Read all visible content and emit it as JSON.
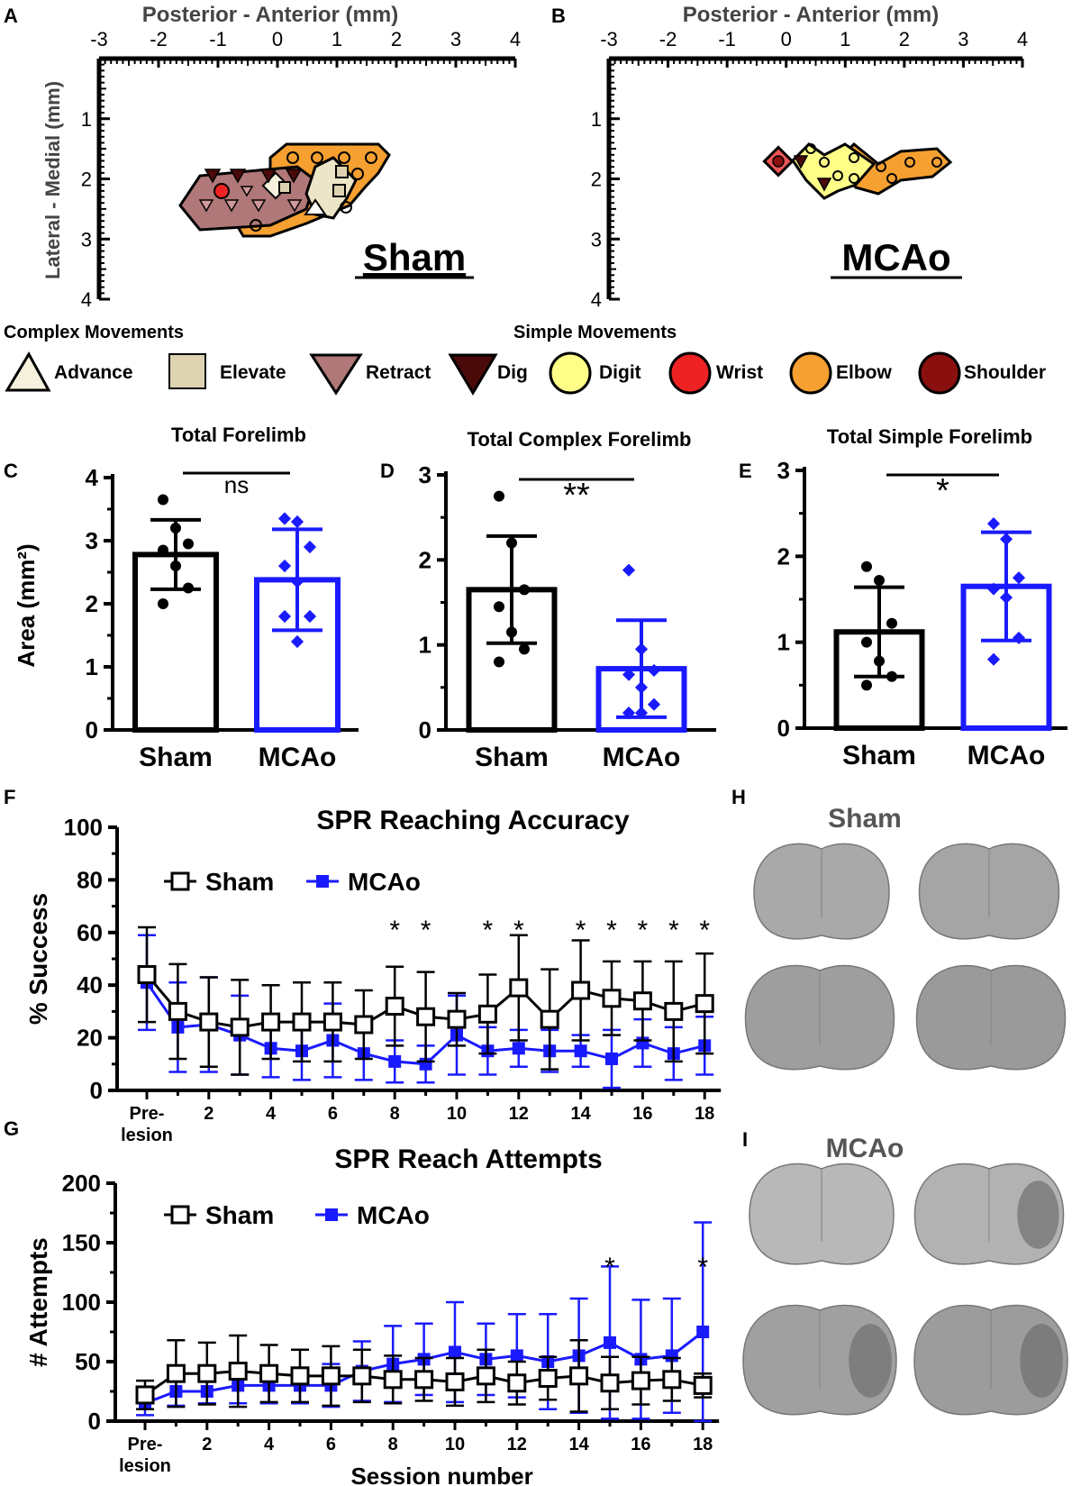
{
  "colors": {
    "sham": "#000000",
    "mcao": "#1a1aff",
    "advance": "#f5f1dc",
    "elevate": "#ddd3b0",
    "retract": "#b07878",
    "dig": "#4a0a0a",
    "digit": "#ffff88",
    "wrist": "#ee2222",
    "elbow": "#f5a030",
    "shoulder": "#8a0f0f"
  },
  "panel_letters": {
    "a": "A",
    "b": "B",
    "c": "C",
    "d": "D",
    "e": "E",
    "f": "F",
    "g": "G",
    "h": "H",
    "i": "I"
  },
  "maps": {
    "xlabel": "Posterior - Anterior (mm)",
    "ylabel": "Lateral - Medial (mm)",
    "xticks": [
      "-3",
      "-2",
      "-1",
      "0",
      "1",
      "2",
      "3",
      "4"
    ],
    "yticks": [
      "1",
      "2",
      "3",
      "4"
    ],
    "sham_label": "Sham",
    "mcao_label": "MCAo"
  },
  "legend": {
    "complex_title": "Complex Movements",
    "simple_title": "Simple Movements",
    "items": [
      "Advance",
      "Elevate",
      "Retract",
      "Dig",
      "Digit",
      "Wrist",
      "Elbow",
      "Shoulder"
    ]
  },
  "chart_data": [
    {
      "type": "bar",
      "title": "Total Forelimb",
      "ylabel": "Area (mm²)",
      "categories": [
        "Sham",
        "MCAo"
      ],
      "values": [
        2.78,
        2.38
      ],
      "error": [
        0.55,
        0.8
      ],
      "ylim": [
        0,
        4
      ],
      "yticks": [
        "0",
        "1",
        "2",
        "3",
        "4"
      ],
      "significance": "ns",
      "points": {
        "Sham": [
          3.65,
          3.2,
          2.95,
          2.85,
          2.6,
          2.25,
          2.0
        ],
        "MCAo": [
          3.35,
          3.3,
          2.9,
          2.6,
          2.35,
          1.8,
          1.8,
          1.4
        ]
      }
    },
    {
      "type": "bar",
      "title": "Total Complex Forelimb",
      "categories": [
        "Sham",
        "MCAo"
      ],
      "values": [
        1.65,
        0.72
      ],
      "error": [
        0.63,
        0.57
      ],
      "ylim": [
        0,
        3
      ],
      "yticks": [
        "0",
        "1",
        "2",
        "3"
      ],
      "significance": "**",
      "points": {
        "Sham": [
          2.75,
          2.2,
          1.65,
          1.45,
          1.15,
          0.95,
          0.8
        ],
        "MCAo": [
          1.88,
          0.95,
          0.7,
          0.65,
          0.5,
          0.3,
          0.2,
          0.2
        ]
      }
    },
    {
      "type": "bar",
      "title": "Total Simple Forelimb",
      "categories": [
        "Sham",
        "MCAo"
      ],
      "values": [
        1.12,
        1.65
      ],
      "error": [
        0.52,
        0.63
      ],
      "ylim": [
        0,
        3
      ],
      "yticks": [
        "0",
        "1",
        "2",
        "3"
      ],
      "significance": "*",
      "points": {
        "Sham": [
          1.88,
          1.72,
          1.22,
          1.0,
          0.78,
          0.6,
          0.5
        ],
        "MCAo": [
          2.38,
          2.2,
          1.75,
          1.62,
          1.52,
          1.05,
          0.8
        ]
      }
    },
    {
      "type": "line",
      "title": "SPR Reaching Accuracy",
      "ylabel": "% Success",
      "ylim": [
        0,
        100
      ],
      "yticks": [
        "0",
        "20",
        "40",
        "60",
        "80",
        "100"
      ],
      "x": [
        0,
        1,
        2,
        3,
        4,
        5,
        6,
        7,
        8,
        9,
        10,
        11,
        12,
        13,
        14,
        15,
        16,
        17,
        18
      ],
      "xticklabels": {
        "0": "Pre-",
        "2": "2",
        "4": "4",
        "6": "6",
        "8": "8",
        "10": "10",
        "12": "12",
        "14": "14",
        "16": "16",
        "18": "18"
      },
      "xticklabel_extra": "lesion",
      "series": [
        {
          "name": "Sham",
          "values": [
            44,
            30,
            26,
            24,
            26,
            26,
            26,
            25,
            32,
            28,
            27,
            29,
            39,
            27,
            38,
            35,
            34,
            30,
            33
          ],
          "error": [
            18,
            18,
            17,
            18,
            14,
            15,
            15,
            13,
            15,
            17,
            10,
            15,
            20,
            19,
            19,
            14,
            15,
            19,
            19
          ]
        },
        {
          "name": "MCAo",
          "values": [
            41,
            24,
            25,
            21,
            16,
            15,
            19,
            14,
            11,
            10,
            21,
            15,
            16,
            15,
            15,
            12,
            18,
            14,
            17
          ],
          "error": [
            18,
            17,
            18,
            15,
            11,
            11,
            14,
            10,
            8,
            7,
            15,
            9,
            7,
            8,
            6,
            11,
            9,
            10,
            11
          ]
        }
      ],
      "stars": {
        "8": "*",
        "9": "*",
        "11": "*",
        "12": "*",
        "14": "*",
        "15": "*",
        "16": "*",
        "17": "*",
        "18": "*"
      }
    },
    {
      "type": "line",
      "title": "SPR Reach Attempts",
      "ylabel": "# Attempts",
      "xlabel": "Session number",
      "ylim": [
        0,
        200
      ],
      "yticks": [
        "0",
        "50",
        "100",
        "150",
        "200"
      ],
      "x": [
        0,
        1,
        2,
        3,
        4,
        5,
        6,
        7,
        8,
        9,
        10,
        11,
        12,
        13,
        14,
        15,
        16,
        17,
        18
      ],
      "xticklabels": {
        "0": "Pre-",
        "2": "2",
        "4": "4",
        "6": "6",
        "8": "8",
        "10": "10",
        "12": "12",
        "14": "14",
        "16": "16",
        "18": "18"
      },
      "xticklabel_extra": "lesion",
      "series": [
        {
          "name": "Sham",
          "values": [
            22,
            40,
            40,
            42,
            40,
            38,
            38,
            38,
            35,
            35,
            33,
            38,
            32,
            36,
            38,
            32,
            34,
            35,
            30
          ],
          "error": [
            12,
            28,
            26,
            30,
            24,
            22,
            25,
            22,
            20,
            18,
            20,
            22,
            18,
            18,
            30,
            22,
            20,
            18,
            10
          ]
        },
        {
          "name": "MCAo",
          "values": [
            15,
            25,
            25,
            30,
            30,
            30,
            30,
            42,
            48,
            52,
            58,
            52,
            55,
            50,
            55,
            66,
            52,
            55,
            75
          ],
          "error": [
            10,
            12,
            10,
            15,
            15,
            15,
            18,
            25,
            32,
            30,
            42,
            30,
            35,
            40,
            48,
            64,
            50,
            48,
            92
          ]
        }
      ],
      "stars": {
        "15": "*",
        "18": "*"
      }
    }
  ],
  "brains": {
    "sham_label": "Sham",
    "mcao_label": "MCAo"
  }
}
